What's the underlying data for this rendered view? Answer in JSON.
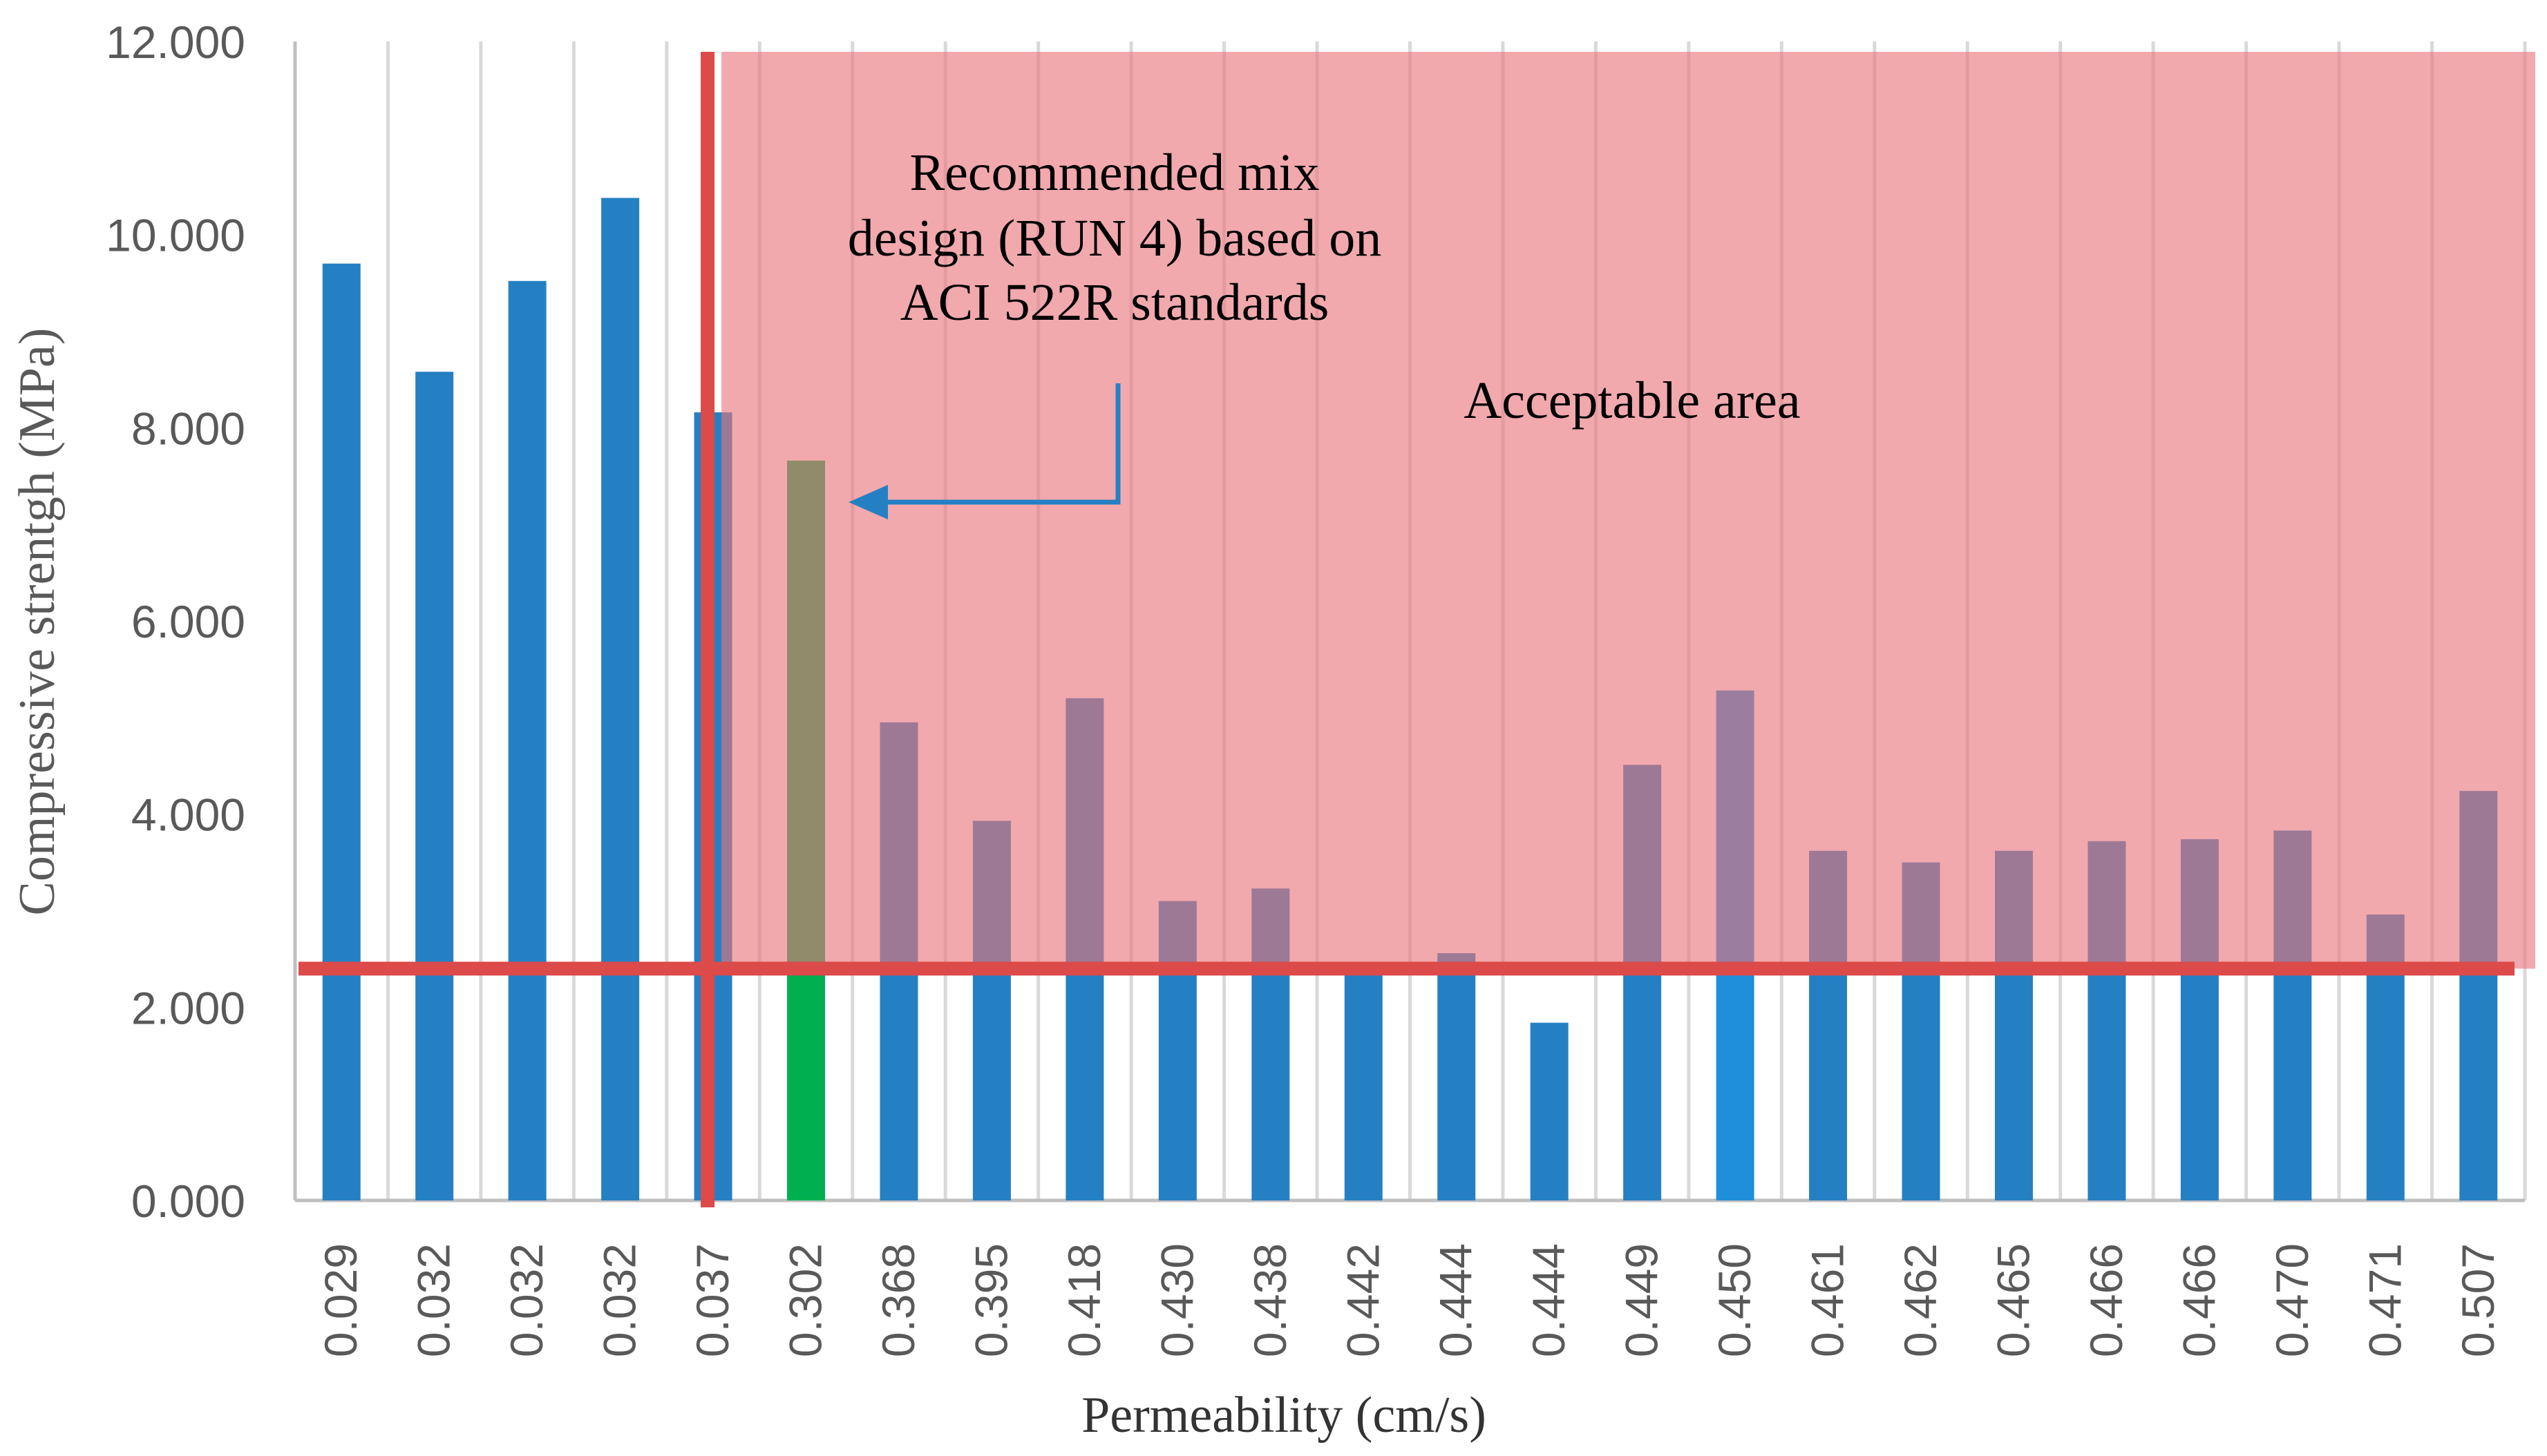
{
  "chart_data": {
    "type": "bar",
    "title": "",
    "xlabel": "Permeability (cm/s)",
    "ylabel": "Compressive strentgh (MPa)",
    "ylim": [
      0,
      12
    ],
    "yticks": [
      "0.000",
      "2.000",
      "4.000",
      "6.000",
      "8.000",
      "10.000",
      "12.000"
    ],
    "grid": "vertical",
    "categories": [
      "0.029",
      "0.032",
      "0.032",
      "0.032",
      "0.037",
      "0.302",
      "0.368",
      "0.395",
      "0.418",
      "0.430",
      "0.438",
      "0.442",
      "0.444",
      "0.444",
      "0.449",
      "0.450",
      "0.461",
      "0.462",
      "0.465",
      "0.466",
      "0.466",
      "0.470",
      "0.471",
      "0.507"
    ],
    "series": [
      {
        "name": "Compressive strength",
        "values": [
          9.7,
          8.58,
          9.52,
          10.38,
          8.16,
          7.66,
          4.95,
          3.93,
          5.2,
          3.1,
          3.23,
          2.35,
          2.56,
          1.84,
          4.51,
          5.28,
          3.62,
          3.5,
          3.62,
          3.72,
          3.74,
          3.83,
          2.96,
          4.24
        ]
      }
    ],
    "highlight": {
      "index": 5,
      "color": "#00B050"
    },
    "bright_bar": {
      "index": 15,
      "color": "#1F8FDB"
    },
    "thresholds": {
      "min_strength": 2.4,
      "min_permeability_after_index": 4
    },
    "annotations": {
      "recommended": [
        "Recommended mix",
        "design (RUN 4) based on",
        "ACI 522R standards"
      ],
      "acceptable": "Acceptable area"
    },
    "colors": {
      "bar": "#2580C3",
      "acceptable_fill": "#E8747A",
      "threshold_line": "#DC4A4A",
      "arrow": "#2580C3",
      "grid": "#D9D9D9",
      "axis_text": "#595959"
    }
  }
}
